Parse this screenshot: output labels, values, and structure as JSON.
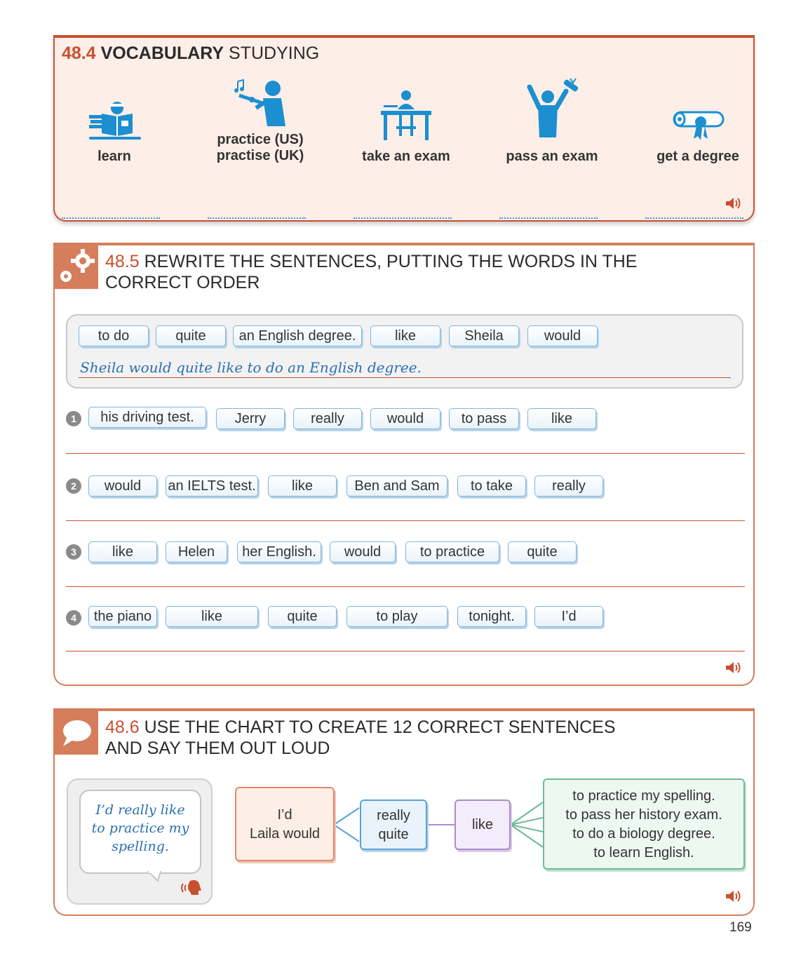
{
  "vocab": {
    "number": "48.4",
    "title_bold": "VOCABULARY",
    "title_rest": "STUDYING",
    "items": [
      {
        "icon": "reading-person-icon",
        "label_lines": [
          "learn"
        ]
      },
      {
        "icon": "flute-player-icon",
        "label_lines": [
          "practice (US)",
          "practise (UK)"
        ]
      },
      {
        "icon": "exam-desk-icon",
        "label_lines": [
          "take an exam"
        ]
      },
      {
        "icon": "celebrating-person-icon",
        "label_lines": [
          "pass an exam"
        ]
      },
      {
        "icon": "diploma-scroll-icon",
        "label_lines": [
          "get a degree"
        ]
      }
    ]
  },
  "reorder": {
    "number": "48.5",
    "title_line1": "REWRITE THE SENTENCES, PUTTING THE WORDS IN THE",
    "title_line2": "CORRECT ORDER",
    "example": {
      "words": [
        "to do",
        "quite",
        "an English degree.",
        "like",
        "Sheila",
        "would"
      ],
      "answer": "Sheila would quite like to do an English degree."
    },
    "questions": [
      {
        "number": "1",
        "words": [
          "his driving test.",
          "Jerry",
          "really",
          "would",
          "to pass",
          "like"
        ]
      },
      {
        "number": "2",
        "words": [
          "would",
          "an IELTS test.",
          "like",
          "Ben and Sam",
          "to take",
          "really"
        ]
      },
      {
        "number": "3",
        "words": [
          "like",
          "Helen",
          "her English.",
          "would",
          "to practice",
          "quite"
        ]
      },
      {
        "number": "4",
        "words": [
          "the piano",
          "like",
          "quite",
          "to play",
          "tonight.",
          "I’d"
        ]
      }
    ]
  },
  "speak": {
    "number": "48.6",
    "title_line1": "USE THE CHART TO CREATE 12 CORRECT SENTENCES",
    "title_line2": "AND SAY THEM OUT LOUD",
    "bubble_lines": [
      "I’d really like",
      "to practice my",
      "spelling."
    ],
    "chart": {
      "subjects": [
        "I’d",
        "Laila would"
      ],
      "adverbs": [
        "really",
        "quite"
      ],
      "verb": "like",
      "endings": [
        "to practice my spelling.",
        "to pass her history exam.",
        "to do a biology degree.",
        "to learn English."
      ]
    },
    "colors": {
      "subjects": "#e08a6a",
      "adverbs": "#5aa3d6",
      "verb": "#a98cc9",
      "endings": "#6fb89a"
    }
  },
  "page_number": "169"
}
